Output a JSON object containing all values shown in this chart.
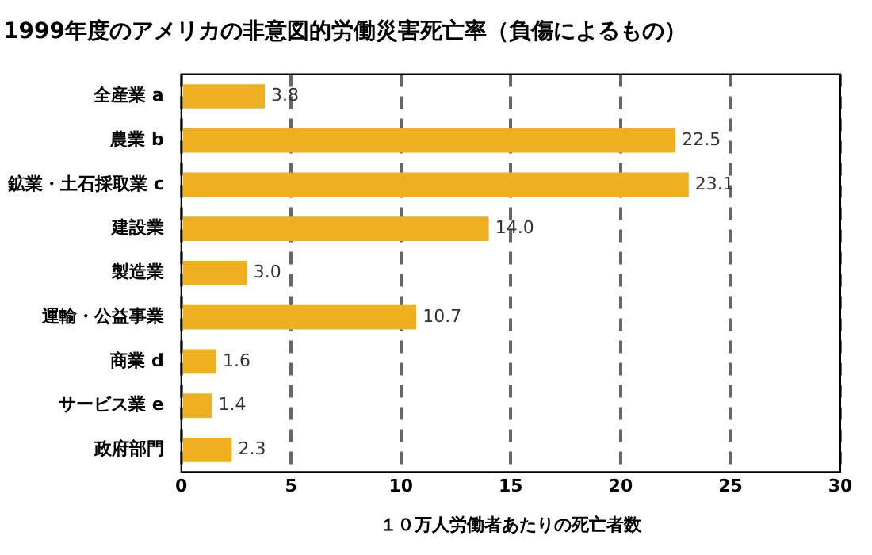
{
  "chart_data": {
    "type": "bar",
    "orientation": "horizontal",
    "title": "1999年度のアメリカの非意図的労働災害死亡率（負傷によるもの）",
    "xlabel": "１０万人労働者あたりの死亡者数",
    "categories": [
      "全産業 a",
      "農業 b",
      "鉱業・土石採取業 c",
      "建設業",
      "製造業",
      "運輸・公益事業",
      "商業 d",
      "サービス業 e",
      "政府部門"
    ],
    "values": [
      3.8,
      22.5,
      23.1,
      14.0,
      3.0,
      10.7,
      1.6,
      1.4,
      2.3
    ],
    "value_labels": [
      "3.8",
      "22.5",
      "23.1",
      "14.0",
      "3.0",
      "10.7",
      "1.6",
      "1.4",
      "2.3"
    ],
    "color": "#eeb020",
    "xlim": [
      0,
      30
    ],
    "xticks": [
      0,
      5,
      10,
      15,
      20,
      25,
      30
    ],
    "grid": "x",
    "legend": false
  }
}
